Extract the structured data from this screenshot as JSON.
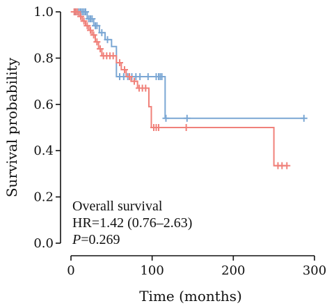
{
  "chart_data": {
    "type": "line",
    "title": "",
    "xlabel": "Time (months)",
    "ylabel": "Survival probability",
    "xlim": [
      0,
      300
    ],
    "ylim": [
      0,
      1.0
    ],
    "x_ticks": [
      0,
      100,
      200,
      300
    ],
    "y_ticks": [
      0.0,
      0.2,
      0.4,
      0.6,
      0.8,
      1.0
    ],
    "x_tick_labels": [
      "0",
      "100",
      "200",
      "300"
    ],
    "y_tick_labels": [
      "0.0",
      "0.2",
      "0.4",
      "0.6",
      "0.8",
      "1.0"
    ],
    "grid": false,
    "annotation": {
      "line1": "Overall survival",
      "line2": "HR=1.42 (0.76–2.63)",
      "line3_italic": "P",
      "line3_rest": "=0.269"
    },
    "series": [
      {
        "color": "#7ba7d4",
        "steps": [
          [
            0,
            1.0
          ],
          [
            20,
            0.97
          ],
          [
            28,
            0.94
          ],
          [
            35,
            0.91
          ],
          [
            42,
            0.88
          ],
          [
            50,
            0.85
          ],
          [
            56,
            0.72
          ],
          [
            116,
            0.72
          ],
          [
            116,
            0.54
          ],
          [
            288,
            0.54
          ]
        ],
        "censored": [
          [
            5,
            1.0
          ],
          [
            8,
            1.0
          ],
          [
            10,
            1.0
          ],
          [
            12,
            1.0
          ],
          [
            14,
            1.0
          ],
          [
            16,
            1.0
          ],
          [
            18,
            1.0
          ],
          [
            22,
            0.97
          ],
          [
            24,
            0.97
          ],
          [
            26,
            0.97
          ],
          [
            30,
            0.94
          ],
          [
            32,
            0.94
          ],
          [
            38,
            0.91
          ],
          [
            45,
            0.88
          ],
          [
            60,
            0.72
          ],
          [
            65,
            0.72
          ],
          [
            70,
            0.72
          ],
          [
            75,
            0.72
          ],
          [
            80,
            0.72
          ],
          [
            85,
            0.72
          ],
          [
            95,
            0.72
          ],
          [
            105,
            0.72
          ],
          [
            108,
            0.72
          ],
          [
            110,
            0.72
          ],
          [
            112,
            0.72
          ],
          [
            117,
            0.54
          ],
          [
            143,
            0.54
          ],
          [
            287,
            0.54
          ]
        ]
      },
      {
        "color": "#f0817a",
        "steps": [
          [
            0,
            1.0
          ],
          [
            10,
            0.98
          ],
          [
            14,
            0.96
          ],
          [
            18,
            0.94
          ],
          [
            22,
            0.92
          ],
          [
            26,
            0.9
          ],
          [
            30,
            0.87
          ],
          [
            34,
            0.84
          ],
          [
            38,
            0.81
          ],
          [
            56,
            0.78
          ],
          [
            62,
            0.75
          ],
          [
            68,
            0.72
          ],
          [
            74,
            0.7
          ],
          [
            82,
            0.67
          ],
          [
            96,
            0.59
          ],
          [
            99,
            0.5
          ],
          [
            250,
            0.5
          ],
          [
            250,
            0.335
          ],
          [
            265,
            0.335
          ]
        ],
        "censored": [
          [
            4,
            1.0
          ],
          [
            6,
            1.0
          ],
          [
            8,
            1.0
          ],
          [
            12,
            0.98
          ],
          [
            16,
            0.96
          ],
          [
            20,
            0.94
          ],
          [
            24,
            0.92
          ],
          [
            28,
            0.9
          ],
          [
            32,
            0.87
          ],
          [
            36,
            0.84
          ],
          [
            40,
            0.81
          ],
          [
            44,
            0.81
          ],
          [
            48,
            0.81
          ],
          [
            52,
            0.81
          ],
          [
            60,
            0.78
          ],
          [
            66,
            0.75
          ],
          [
            72,
            0.72
          ],
          [
            78,
            0.7
          ],
          [
            84,
            0.67
          ],
          [
            88,
            0.67
          ],
          [
            92,
            0.67
          ],
          [
            102,
            0.5
          ],
          [
            105,
            0.5
          ],
          [
            108,
            0.5
          ],
          [
            142,
            0.5
          ],
          [
            255,
            0.335
          ],
          [
            260,
            0.335
          ],
          [
            266,
            0.335
          ]
        ]
      }
    ]
  }
}
